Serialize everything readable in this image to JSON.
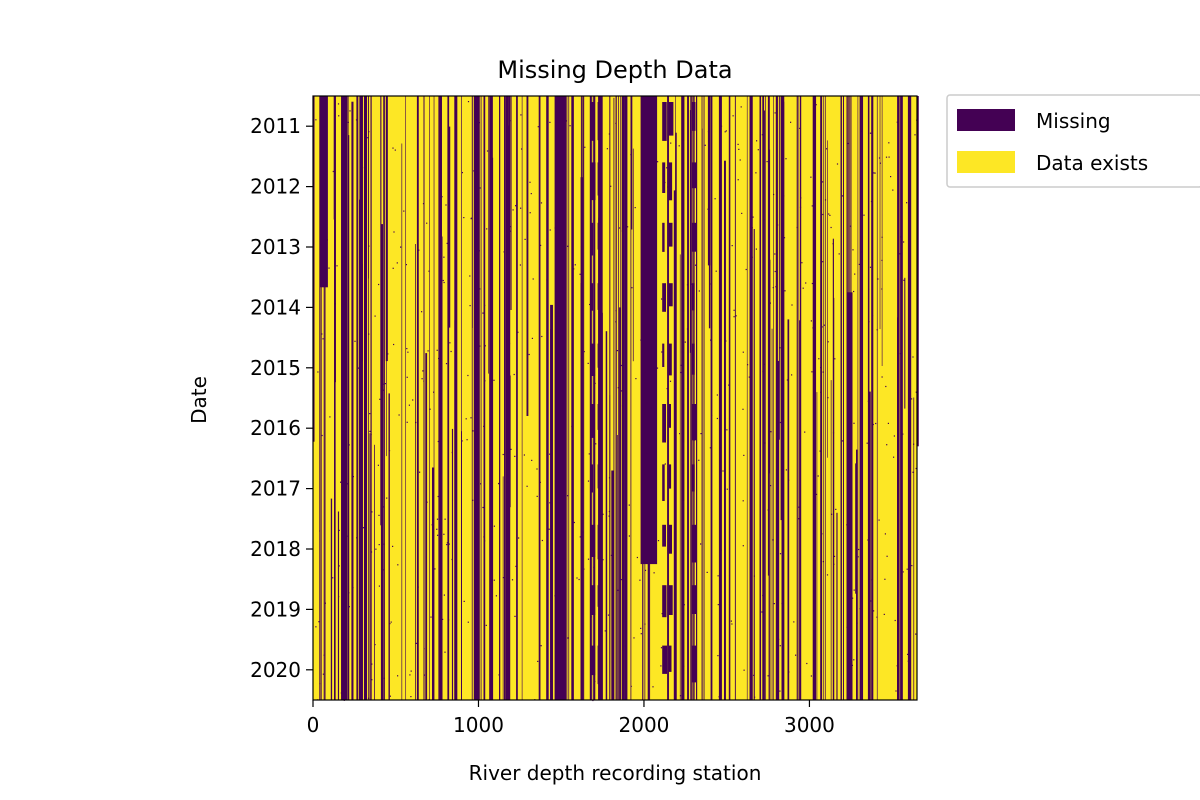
{
  "chart_data": {
    "type": "heatmap",
    "title": "Missing Depth Data",
    "xlabel": "River depth recording station",
    "ylabel": "Date",
    "xlim": [
      0,
      3650
    ],
    "x_ticks": [
      0,
      1000,
      2000,
      3000
    ],
    "x_tick_labels": [
      "0",
      "1000",
      "2000",
      "3000"
    ],
    "ylim": [
      "2010-07",
      "2020-07"
    ],
    "y_ticks": [
      "2011-01",
      "2012-01",
      "2013-01",
      "2014-01",
      "2015-01",
      "2016-01",
      "2017-01",
      "2018-01",
      "2019-01",
      "2020-01"
    ],
    "y_tick_labels": [
      "2011",
      "2012",
      "2013",
      "2014",
      "2015",
      "2016",
      "2017",
      "2018",
      "2019",
      "2020"
    ],
    "categories": [
      "Missing",
      "Data exists"
    ],
    "colors": {
      "missing": "#440154",
      "exists": "#fde725"
    },
    "legend_placement": "outside top-right",
    "grid": false,
    "missing_regions": [
      {
        "station_start": 1980,
        "station_end": 2080,
        "date_start": "2010-07",
        "date_end": "2018-04"
      },
      {
        "station_start": 40,
        "station_end": 90,
        "date_start": "2010-07",
        "date_end": "2013-09"
      },
      {
        "station_start": 3230,
        "station_end": 3260,
        "date_start": "2013-10",
        "date_end": "2020-07"
      },
      {
        "station_start": 1460,
        "station_end": 1510,
        "date_start": "2010-07",
        "date_end": "2020-07"
      },
      {
        "station_start": 1880,
        "station_end": 1900,
        "date_start": "2010-07",
        "date_end": "2020-07"
      },
      {
        "station_start": 3530,
        "station_end": 3545,
        "date_start": "2010-07",
        "date_end": "2020-07"
      },
      {
        "station_start": 3600,
        "station_end": 3615,
        "date_start": "2010-07",
        "date_end": "2020-07"
      },
      {
        "station_start": 170,
        "station_end": 200,
        "date_start": "2010-07",
        "date_end": "2020-07"
      },
      {
        "station_start": 1850,
        "station_end": 1860,
        "date_start": "2014-01",
        "date_end": "2020-07"
      }
    ]
  },
  "legend": {
    "missing_label": "Missing",
    "exists_label": "Data exists"
  }
}
